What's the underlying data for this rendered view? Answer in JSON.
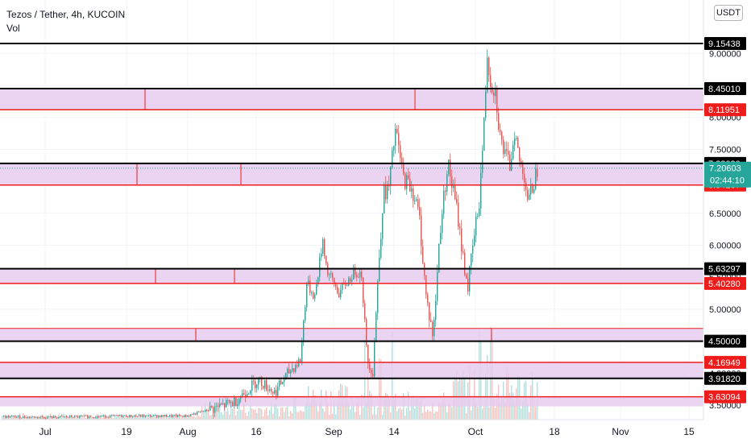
{
  "header": {
    "title": "Tezos / Tether, 4h, KUCOIN",
    "volume_label": "Vol"
  },
  "currency_button": "USDT",
  "colors": {
    "up": "#26a69a",
    "down": "#ef5350",
    "zone_fill": "#e6cdee",
    "level_black": "#000000",
    "level_red": "#ef1c1c",
    "current_price_bg": "#26a69a"
  },
  "chart_data": {
    "type": "candlestick",
    "price_axis": {
      "range": [
        3.28,
        9.4
      ],
      "ticks": [
        "3.50000",
        "4.00000",
        "4.50000",
        "5.00000",
        "5.50000",
        "6.00000",
        "6.50000",
        "7.00000",
        "7.50000",
        "8.00000",
        "8.50000",
        "9.00000"
      ]
    },
    "time_axis": {
      "labels": [
        "Jul",
        "19",
        "Aug",
        "16",
        "Sep",
        "14",
        "Oct",
        "18",
        "Nov",
        "15"
      ]
    },
    "horizontal_levels": [
      {
        "value": 9.15438,
        "label": "9.15438",
        "color": "black"
      },
      {
        "value": 8.4501,
        "label": "8.45010",
        "color": "black"
      },
      {
        "value": 8.11951,
        "label": "8.11951",
        "color": "red"
      },
      {
        "value": 7.2802,
        "label": "7.28020",
        "color": "black"
      },
      {
        "value": 6.94167,
        "label": "6.94167",
        "color": "red"
      },
      {
        "value": 5.63297,
        "label": "5.63297",
        "color": "black"
      },
      {
        "value": 5.4028,
        "label": "5.40280",
        "color": "red"
      },
      {
        "value": 4.5,
        "label": "4.50000",
        "color": "black"
      },
      {
        "value": 4.16949,
        "label": "4.16949",
        "color": "red"
      },
      {
        "value": 3.9182,
        "label": "3.91820",
        "color": "black"
      },
      {
        "value": 3.63094,
        "label": "3.63094",
        "color": "red"
      }
    ],
    "zones": [
      {
        "top": 8.4501,
        "bottom": 8.11951
      },
      {
        "top": 7.2802,
        "bottom": 6.94167
      },
      {
        "top": 5.63297,
        "bottom": 5.4028
      },
      {
        "top": 4.7,
        "bottom": 4.5
      },
      {
        "top": 4.16949,
        "bottom": 3.9182
      },
      {
        "top": 3.63094,
        "bottom": 3.48
      }
    ],
    "current_price": {
      "value": 7.20603,
      "label": "7.20603",
      "countdown": "02:44:10"
    },
    "series": [
      {
        "name": "price",
        "points": [
          [
            "Jul",
            3.32
          ],
          [
            "19",
            3.33
          ],
          [
            "Aug",
            3.36
          ],
          [
            "16",
            3.9
          ],
          [
            "Sep",
            5.3
          ],
          [
            "14",
            7.7
          ],
          [
            "Oct",
            9.1
          ],
          [
            "Oct",
            7.0
          ]
        ]
      }
    ],
    "grid": true,
    "legend_position": "top-left"
  }
}
